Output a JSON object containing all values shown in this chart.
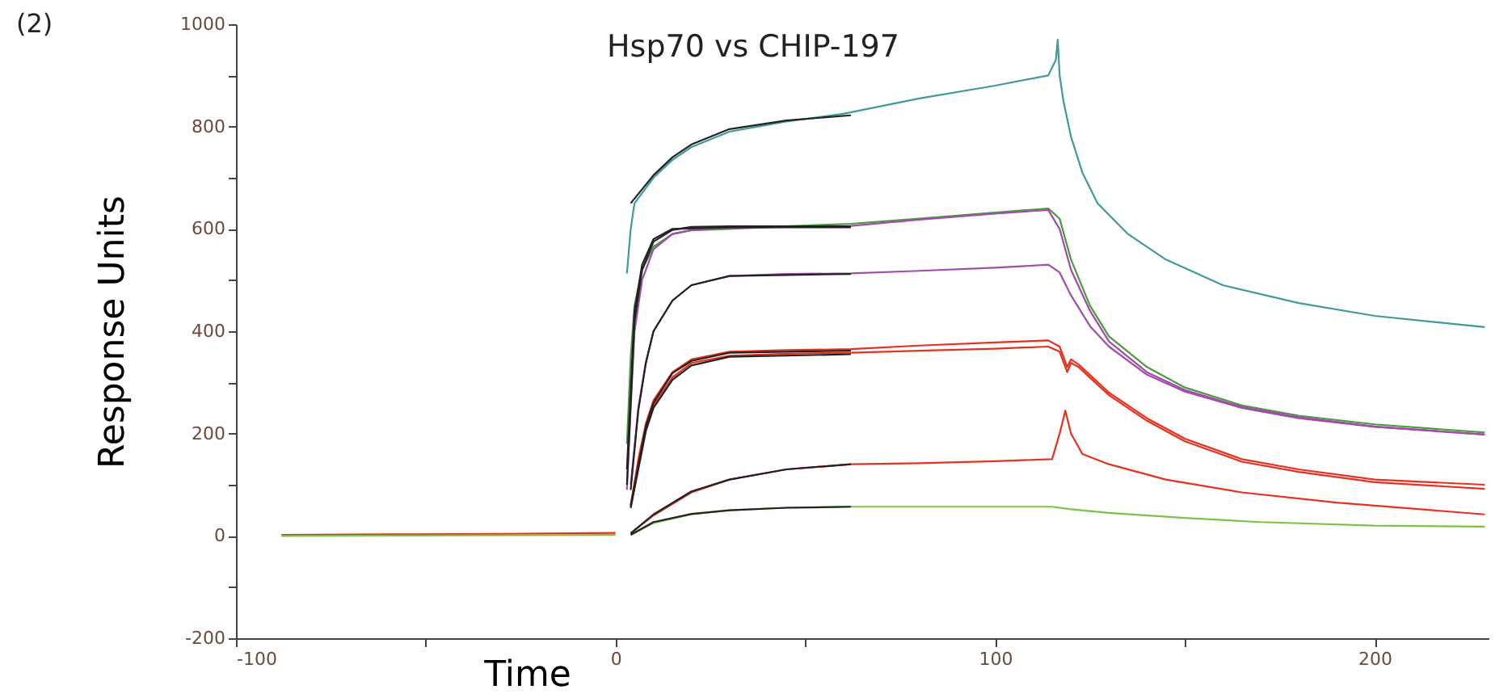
{
  "chart_data": {
    "type": "line",
    "title": "Hsp70 vs CHIP-197",
    "xlabel": "Time",
    "ylabel": "Response Units",
    "annotations": [
      "(2)"
    ],
    "xlim": [
      -100,
      230
    ],
    "xticks": [
      -100,
      {
        "value": -50,
        "label": null
      },
      0,
      {
        "value": 50,
        "label": null
      },
      100,
      {
        "value": 150,
        "label": null
      },
      200
    ],
    "ylim": [
      -200,
      1000
    ],
    "yticks": [
      -200,
      {
        "value": -100,
        "label": null
      },
      0,
      {
        "value": 100,
        "label": null
      },
      200,
      {
        "value": 300,
        "label": null
      },
      400,
      {
        "value": 500,
        "label": null
      },
      600,
      {
        "value": 700,
        "label": null
      },
      800,
      {
        "value": 900,
        "label": null
      },
      1000
    ],
    "grid": false,
    "marker": "none",
    "line_style": "solid",
    "series": [
      {
        "color": "#e8301e",
        "x": [
          -88,
          -60,
          -30,
          0
        ],
        "values": [
          2,
          3,
          4,
          6
        ]
      },
      {
        "color": "#7cc24a",
        "x": [
          -88,
          -40,
          0
        ],
        "values": [
          0,
          1,
          2
        ]
      },
      {
        "color": "#3f9a9a",
        "x": [
          3,
          4,
          5,
          10,
          15,
          20,
          30,
          45,
          60,
          80,
          100,
          114,
          116,
          116.5,
          117,
          118,
          120,
          123,
          127,
          135,
          145,
          160,
          180,
          200,
          229
        ],
        "values": [
          513,
          600,
          650,
          700,
          735,
          760,
          790,
          810,
          825,
          855,
          880,
          900,
          930,
          970,
          900,
          850,
          780,
          710,
          650,
          590,
          540,
          490,
          455,
          430,
          408
        ]
      },
      {
        "color": "#4c9a40",
        "x": [
          3,
          4,
          5,
          7,
          10,
          15,
          20,
          30,
          45,
          62,
          80,
          100,
          114,
          117,
          120,
          125,
          130,
          140,
          150,
          165,
          180,
          200,
          229
        ],
        "values": [
          180,
          350,
          450,
          520,
          565,
          590,
          597,
          600,
          605,
          610,
          620,
          632,
          640,
          620,
          540,
          450,
          390,
          330,
          290,
          255,
          235,
          218,
          202
        ]
      },
      {
        "color": "#a04ca8",
        "x": [
          3,
          4,
          5,
          7,
          10,
          15,
          20,
          30,
          62,
          80,
          100,
          114,
          117,
          120,
          125,
          130,
          140,
          150,
          165,
          180,
          200,
          229
        ],
        "values": [
          90,
          250,
          400,
          500,
          560,
          590,
          598,
          602,
          606,
          618,
          630,
          637,
          600,
          520,
          440,
          380,
          320,
          285,
          252,
          232,
          214,
          198
        ]
      },
      {
        "color": "#a04ca8",
        "x": [
          4,
          6,
          8,
          10,
          15,
          20,
          30,
          45,
          62,
          80,
          100,
          114,
          117,
          120,
          125,
          130,
          140,
          150,
          165,
          180,
          200,
          229
        ],
        "values": [
          100,
          250,
          340,
          400,
          460,
          490,
          508,
          512,
          513,
          518,
          524,
          530,
          515,
          470,
          410,
          370,
          315,
          282,
          250,
          230,
          213,
          198
        ]
      },
      {
        "color": "#e8301e",
        "x": [
          4,
          6,
          8,
          10,
          15,
          20,
          30,
          45,
          62,
          80,
          100,
          114,
          117,
          119,
          120,
          122,
          130,
          140,
          150,
          165,
          180,
          200,
          229
        ],
        "values": [
          60,
          150,
          220,
          265,
          320,
          345,
          360,
          363,
          365,
          372,
          378,
          382,
          370,
          330,
          345,
          335,
          280,
          230,
          190,
          150,
          130,
          110,
          100
        ]
      },
      {
        "color": "#e8301e",
        "x": [
          4,
          6,
          8,
          10,
          15,
          20,
          30,
          45,
          62,
          80,
          100,
          114,
          117,
          119,
          120,
          122,
          130,
          140,
          150,
          165,
          180,
          200,
          229
        ],
        "values": [
          55,
          140,
          210,
          255,
          310,
          338,
          352,
          356,
          358,
          362,
          366,
          370,
          360,
          320,
          338,
          330,
          275,
          225,
          185,
          145,
          125,
          105,
          92
        ]
      },
      {
        "color": "#e8301e",
        "x": [
          4,
          10,
          20,
          30,
          45,
          62,
          80,
          100,
          115,
          117,
          118.5,
          120,
          123,
          130,
          145,
          165,
          190,
          229
        ],
        "values": [
          5,
          40,
          85,
          110,
          130,
          140,
          142,
          146,
          150,
          200,
          245,
          200,
          160,
          140,
          110,
          85,
          65,
          42
        ]
      },
      {
        "color": "#7cc24a",
        "x": [
          4,
          10,
          20,
          30,
          45,
          62,
          80,
          100,
          115,
          120,
          130,
          150,
          170,
          200,
          229
        ],
        "values": [
          2,
          25,
          42,
          50,
          55,
          57,
          57,
          57,
          57,
          52,
          45,
          35,
          27,
          20,
          18
        ]
      },
      {
        "color": "#222222",
        "x": [
          4,
          10,
          15,
          20,
          30,
          45,
          62
        ],
        "values": [
          650,
          705,
          740,
          765,
          795,
          812,
          822
        ]
      },
      {
        "color": "#222222",
        "x": [
          3,
          5,
          7,
          10,
          15,
          20,
          30,
          62
        ],
        "values": [
          100,
          420,
          520,
          575,
          598,
          604,
          605,
          605
        ]
      },
      {
        "color": "#222222",
        "x": [
          3,
          5,
          7,
          10,
          15,
          30,
          62
        ],
        "values": [
          130,
          440,
          530,
          580,
          600,
          603,
          603
        ]
      },
      {
        "color": "#222222",
        "x": [
          4,
          6,
          8,
          10,
          15,
          20,
          30,
          62
        ],
        "values": [
          90,
          245,
          338,
          400,
          460,
          490,
          508,
          512
        ]
      },
      {
        "color": "#222222",
        "x": [
          4,
          8,
          10,
          15,
          20,
          30,
          62
        ],
        "values": [
          60,
          215,
          260,
          318,
          342,
          358,
          362
        ]
      },
      {
        "color": "#222222",
        "x": [
          4,
          8,
          10,
          15,
          20,
          30,
          62
        ],
        "values": [
          55,
          205,
          250,
          305,
          333,
          350,
          355
        ]
      },
      {
        "color": "#222222",
        "x": [
          4,
          10,
          20,
          30,
          45,
          62
        ],
        "values": [
          5,
          42,
          87,
          110,
          130,
          140
        ]
      },
      {
        "color": "#222222",
        "x": [
          4,
          10,
          20,
          30,
          45,
          62
        ],
        "values": [
          2,
          27,
          43,
          50,
          55,
          57
        ]
      }
    ]
  }
}
